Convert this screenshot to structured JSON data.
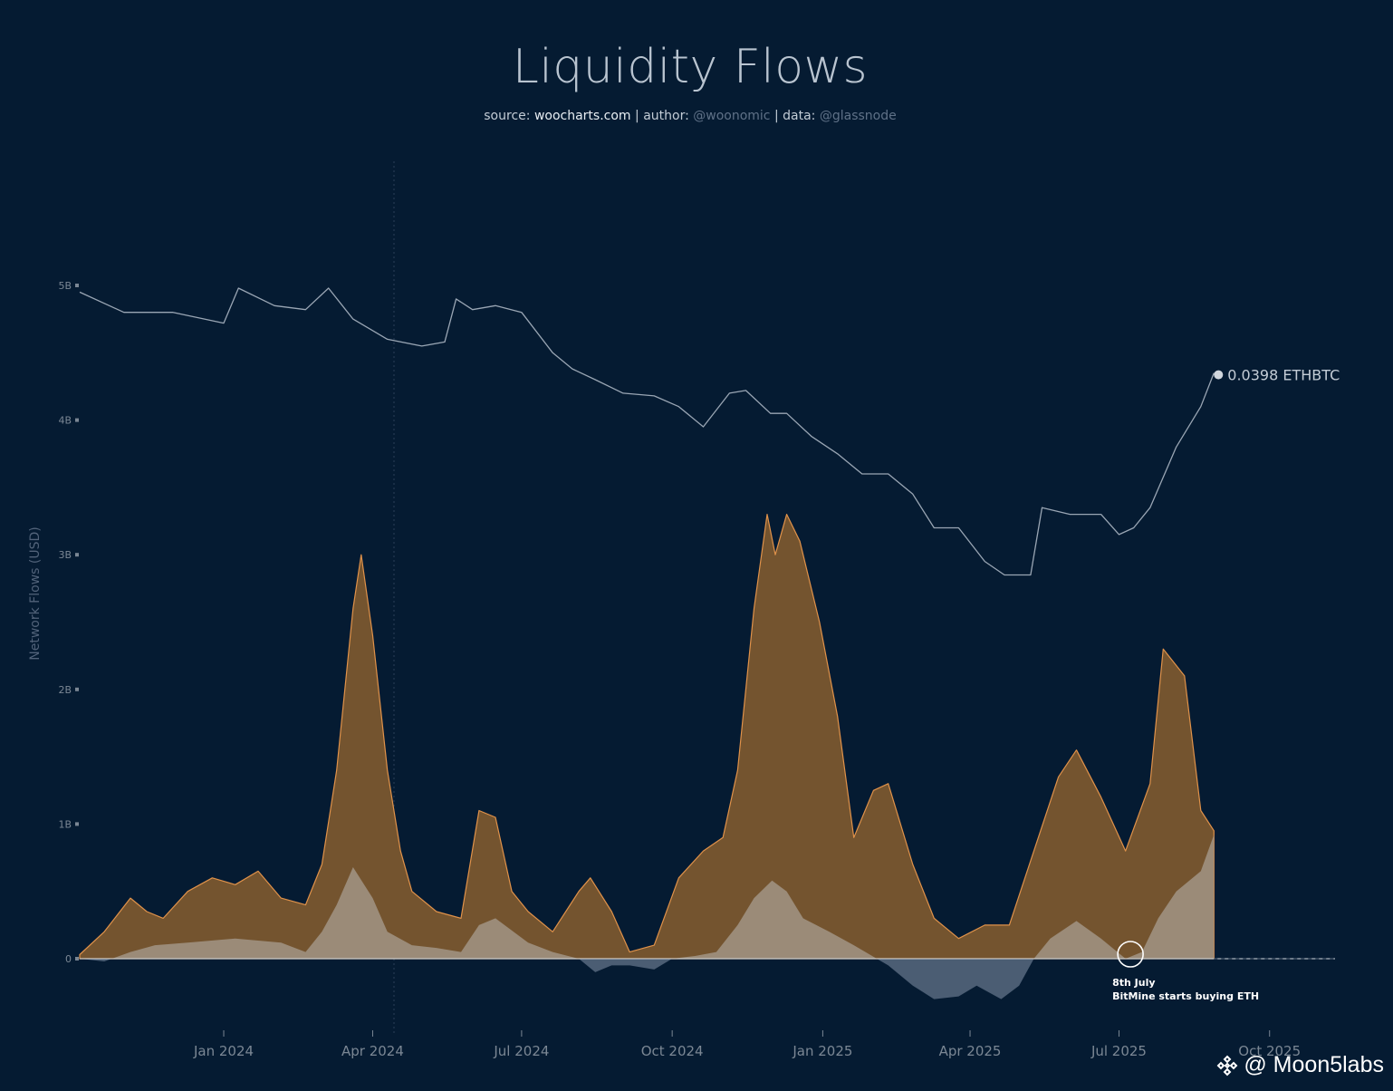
{
  "title": "Liquidity Flows",
  "subtitle": {
    "source_label": "source:",
    "source": "woocharts.com",
    "author_label": "author:",
    "author": "@woonomic",
    "data_label": "data:",
    "data": "@glassnode",
    "separator": "|"
  },
  "watermark": {
    "text": "@ Moon5labs",
    "icon": "binance-diamond-icon"
  },
  "colors": {
    "background": "#051b32",
    "total_flow_fill": "#74542f",
    "total_flow_line": "#e0924a",
    "net_flow_positive": "#9b8b78",
    "net_flow_negative": "#4b5d73",
    "ethbtc_line": "#9aa6b4",
    "axis_text": "#7b8794"
  },
  "chart_data": {
    "type": "area",
    "title": "Liquidity Flows",
    "ylabel": "Network Flows (USD)",
    "xlabel": "",
    "yticks": [
      "0",
      "1B",
      "2B",
      "3B",
      "4B",
      "5B"
    ],
    "ylim": [
      -0.6,
      5.2
    ],
    "xticks": [
      "Jan 2024",
      "Apr 2024",
      "Jul 2024",
      "Oct 2024",
      "Jan 2025",
      "Apr 2025",
      "Jul 2025",
      "Oct 2025"
    ],
    "xlim": [
      "2023-10-05",
      "2025-11-10"
    ],
    "end_label": "0.0398 ETHBTC",
    "annotation": {
      "date": "2025-07-08",
      "line1": "8th July",
      "line2": "BitMine starts buying ETH"
    },
    "series": [
      {
        "name": "",
        "kind": "total_flows",
        "x": [
          "2023-10-05",
          "2023-10-20",
          "2023-11-05",
          "2023-11-15",
          "2023-11-25",
          "2023-12-10",
          "2023-12-25",
          "2024-01-08",
          "2024-01-22",
          "2024-02-05",
          "2024-02-20",
          "2024-03-01",
          "2024-03-10",
          "2024-03-20",
          "2024-03-25",
          "2024-04-01",
          "2024-04-10",
          "2024-04-18",
          "2024-04-25",
          "2024-05-10",
          "2024-05-25",
          "2024-06-05",
          "2024-06-15",
          "2024-06-25",
          "2024-07-05",
          "2024-07-20",
          "2024-08-05",
          "2024-08-12",
          "2024-08-25",
          "2024-09-05",
          "2024-09-20",
          "2024-10-05",
          "2024-10-20",
          "2024-11-01",
          "2024-11-10",
          "2024-11-20",
          "2024-11-28",
          "2024-12-03",
          "2024-12-10",
          "2024-12-18",
          "2024-12-30",
          "2025-01-10",
          "2025-01-20",
          "2025-02-01",
          "2025-02-10",
          "2025-02-25",
          "2025-03-10",
          "2025-03-25",
          "2025-04-10",
          "2025-04-25",
          "2025-05-10",
          "2025-05-25",
          "2025-06-05",
          "2025-06-20",
          "2025-07-05",
          "2025-07-20",
          "2025-07-28",
          "2025-08-10",
          "2025-08-20",
          "2025-08-28"
        ],
        "values": [
          0.03,
          0.2,
          0.45,
          0.35,
          0.3,
          0.5,
          0.6,
          0.55,
          0.65,
          0.45,
          0.4,
          0.7,
          1.4,
          2.6,
          3.0,
          2.4,
          1.4,
          0.8,
          0.5,
          0.35,
          0.3,
          1.1,
          1.05,
          0.5,
          0.35,
          0.2,
          0.5,
          0.6,
          0.35,
          0.05,
          0.1,
          0.6,
          0.8,
          0.9,
          1.4,
          2.6,
          3.3,
          3.0,
          3.3,
          3.1,
          2.5,
          1.8,
          0.9,
          1.25,
          1.3,
          0.7,
          0.3,
          0.15,
          0.25,
          0.25,
          0.8,
          1.35,
          1.55,
          1.2,
          0.8,
          1.3,
          2.3,
          2.1,
          1.1,
          0.95
        ]
      },
      {
        "name": "",
        "kind": "net_flows",
        "x": [
          "2023-10-05",
          "2023-10-20",
          "2023-11-05",
          "2023-11-20",
          "2023-12-10",
          "2024-01-08",
          "2024-02-05",
          "2024-02-20",
          "2024-03-01",
          "2024-03-10",
          "2024-03-20",
          "2024-04-01",
          "2024-04-10",
          "2024-04-25",
          "2024-05-10",
          "2024-05-25",
          "2024-06-05",
          "2024-06-15",
          "2024-07-05",
          "2024-07-20",
          "2024-08-05",
          "2024-08-15",
          "2024-08-25",
          "2024-09-05",
          "2024-09-20",
          "2024-10-01",
          "2024-10-15",
          "2024-10-28",
          "2024-11-10",
          "2024-11-20",
          "2024-12-01",
          "2024-12-10",
          "2024-12-20",
          "2025-01-05",
          "2025-01-20",
          "2025-02-10",
          "2025-02-25",
          "2025-03-10",
          "2025-03-25",
          "2025-04-05",
          "2025-04-20",
          "2025-05-01",
          "2025-05-10",
          "2025-05-20",
          "2025-06-05",
          "2025-06-20",
          "2025-07-05",
          "2025-07-15",
          "2025-07-25",
          "2025-08-05",
          "2025-08-20",
          "2025-08-28"
        ],
        "values": [
          0.0,
          -0.02,
          0.05,
          0.1,
          0.12,
          0.15,
          0.12,
          0.05,
          0.2,
          0.4,
          0.68,
          0.45,
          0.2,
          0.1,
          0.08,
          0.05,
          0.25,
          0.3,
          0.12,
          0.05,
          0.0,
          -0.1,
          -0.05,
          -0.05,
          -0.08,
          0.0,
          0.02,
          0.05,
          0.25,
          0.45,
          0.58,
          0.5,
          0.3,
          0.2,
          0.1,
          -0.05,
          -0.2,
          -0.3,
          -0.28,
          -0.2,
          -0.3,
          -0.2,
          0.0,
          0.15,
          0.28,
          0.15,
          0.0,
          0.05,
          0.3,
          0.5,
          0.65,
          0.92
        ]
      },
      {
        "name": "ETHBTC",
        "kind": "ethbtc_price",
        "x": [
          "2023-10-05",
          "2023-11-01",
          "2023-12-01",
          "2024-01-01",
          "2024-01-10",
          "2024-02-01",
          "2024-02-20",
          "2024-03-05",
          "2024-03-20",
          "2024-04-10",
          "2024-05-01",
          "2024-05-15",
          "2024-05-22",
          "2024-06-01",
          "2024-06-15",
          "2024-07-01",
          "2024-07-20",
          "2024-08-01",
          "2024-08-15",
          "2024-09-01",
          "2024-09-20",
          "2024-10-05",
          "2024-10-20",
          "2024-11-05",
          "2024-11-15",
          "2024-11-30",
          "2024-12-10",
          "2024-12-25",
          "2025-01-10",
          "2025-01-25",
          "2025-02-10",
          "2025-02-25",
          "2025-03-10",
          "2025-03-25",
          "2025-04-10",
          "2025-04-22",
          "2025-05-08",
          "2025-05-15",
          "2025-06-01",
          "2025-06-20",
          "2025-07-01",
          "2025-07-10",
          "2025-07-20",
          "2025-08-05",
          "2025-08-20",
          "2025-08-28"
        ],
        "values": [
          4.95,
          4.8,
          4.8,
          4.72,
          4.98,
          4.85,
          4.82,
          4.98,
          4.75,
          4.6,
          4.55,
          4.58,
          4.9,
          4.82,
          4.85,
          4.8,
          4.5,
          4.38,
          4.3,
          4.2,
          4.18,
          4.1,
          3.95,
          4.2,
          4.22,
          4.05,
          4.05,
          3.88,
          3.75,
          3.6,
          3.6,
          3.45,
          3.2,
          3.2,
          2.95,
          2.85,
          2.85,
          3.35,
          3.3,
          3.3,
          3.15,
          3.2,
          3.35,
          3.8,
          4.1,
          4.35
        ]
      }
    ]
  }
}
